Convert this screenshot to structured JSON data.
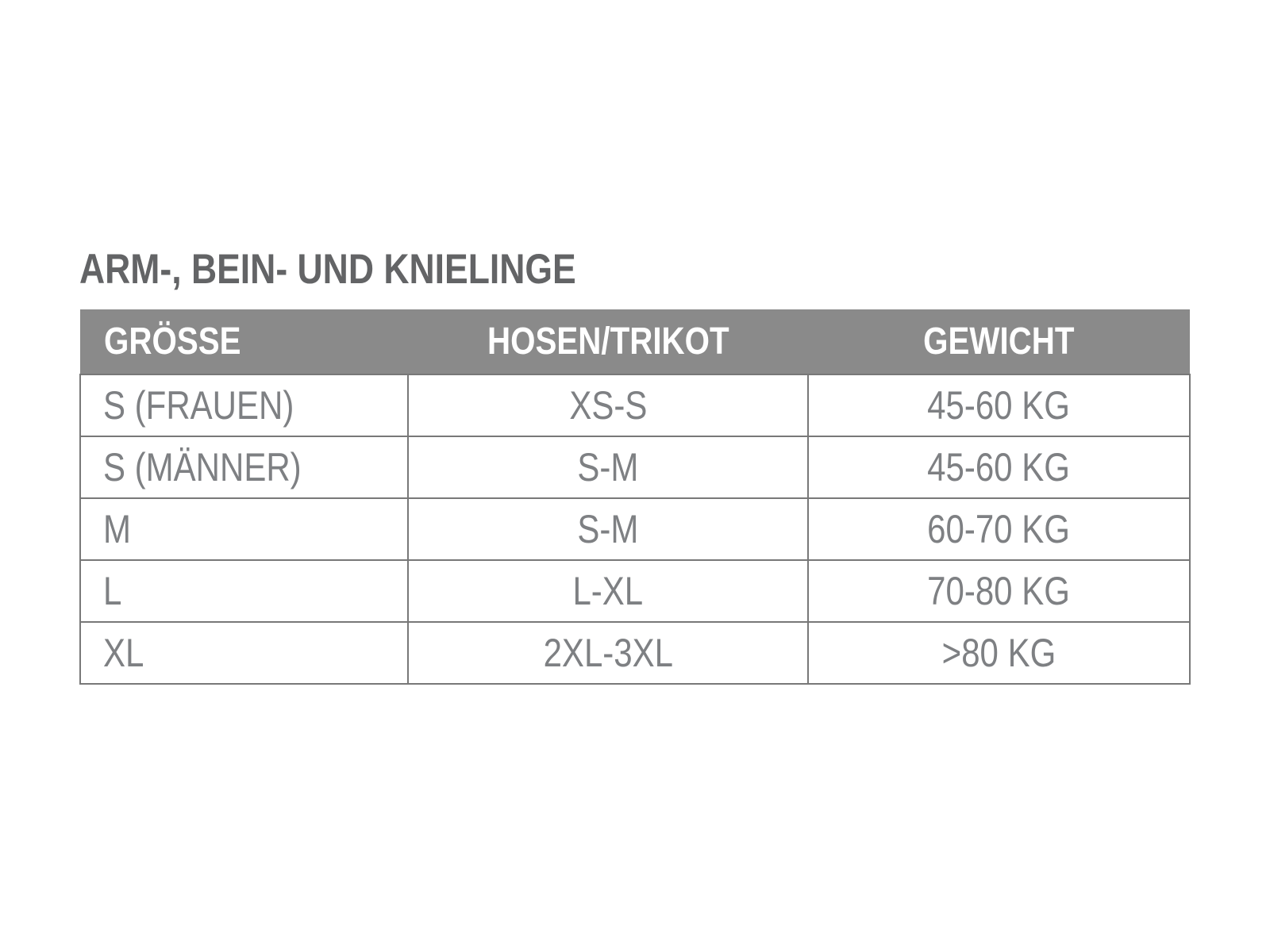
{
  "title": "ARM-, BEIN- UND KNIELINGE",
  "table": {
    "headers": [
      "GRÖSSE",
      "HOSEN/TRIKOT",
      "GEWICHT"
    ],
    "rows": [
      {
        "groesse": "S (FRAUEN)",
        "hosen_trikot": "XS-S",
        "gewicht": "45-60 KG"
      },
      {
        "groesse": "S (MÄNNER)",
        "hosen_trikot": "S-M",
        "gewicht": "45-60 KG"
      },
      {
        "groesse": "M",
        "hosen_trikot": "S-M",
        "gewicht": "60-70 KG"
      },
      {
        "groesse": "L",
        "hosen_trikot": "L-XL",
        "gewicht": "70-80 KG"
      },
      {
        "groesse": "XL",
        "hosen_trikot": "2XL-3XL",
        "gewicht": ">80 KG"
      }
    ]
  },
  "theme": {
    "header_bg": "#8a8a8a",
    "header_text": "#ffffff",
    "body_text": "#7e8083",
    "title_text": "#636466",
    "border": "#787878",
    "page_bg": "#ffffff"
  }
}
